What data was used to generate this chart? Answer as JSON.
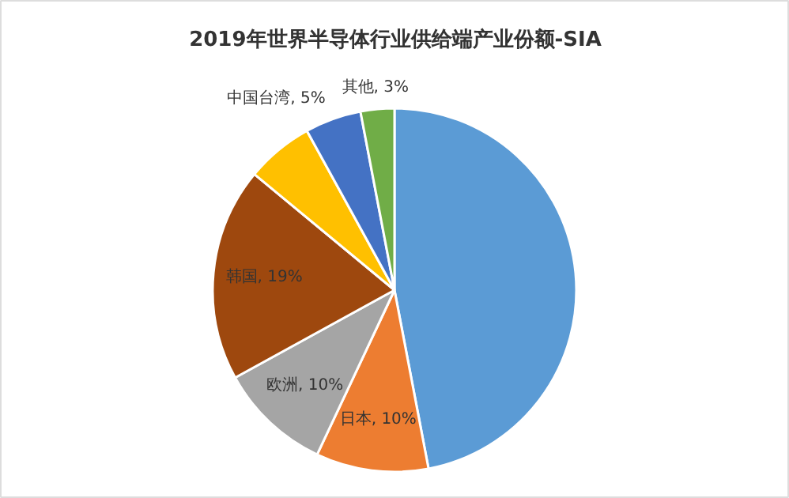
{
  "chart_data": {
    "type": "pie",
    "title": "2019年世界半导体行业供给端产业份额-SIA",
    "categories": [
      null,
      "日本",
      "欧洲",
      "韩国",
      null,
      "中国台湾",
      "其他"
    ],
    "values": [
      47,
      10,
      10,
      19,
      6,
      5,
      3
    ],
    "value_labels": [
      null,
      "10%",
      "10%",
      "19%",
      null,
      "5%",
      "3%"
    ],
    "colors": [
      "#5b9bd5",
      "#ed7d31",
      "#a5a5a5",
      "#9e480e",
      "#ffc000",
      "#4472c4",
      "#70ad47"
    ]
  }
}
